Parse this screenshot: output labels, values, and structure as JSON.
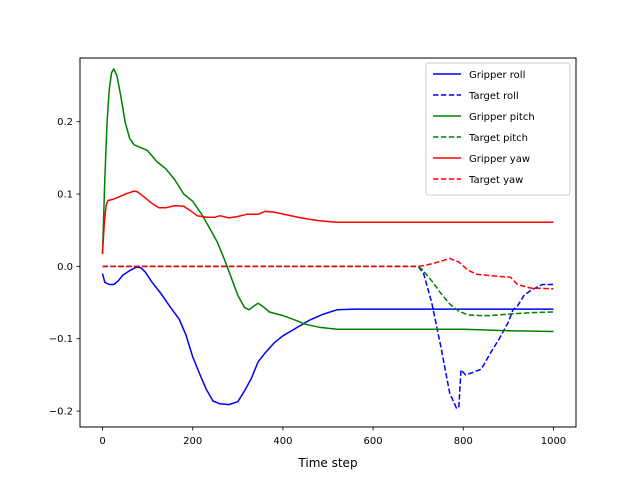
{
  "chart_data": {
    "type": "line",
    "title": "",
    "xlabel": "Time step",
    "ylabel": "",
    "xlim": [
      -50,
      1050
    ],
    "ylim": [
      -0.222,
      0.288
    ],
    "xticks": [
      0,
      200,
      400,
      600,
      800,
      1000
    ],
    "xtick_labels": [
      "0",
      "200",
      "400",
      "600",
      "800",
      "1000"
    ],
    "yticks": [
      -0.2,
      -0.1,
      0.0,
      0.1,
      0.2
    ],
    "ytick_labels": [
      "−0.2",
      "−0.1",
      "0.0",
      "0.1",
      "0.2"
    ],
    "grid": false,
    "legend_position": "top-right",
    "series": [
      {
        "name": "Gripper roll",
        "color": "#0000ff",
        "dash": "solid",
        "points": [
          [
            0,
            -0.01
          ],
          [
            5,
            -0.022
          ],
          [
            15,
            -0.025
          ],
          [
            25,
            -0.025
          ],
          [
            35,
            -0.02
          ],
          [
            45,
            -0.012
          ],
          [
            60,
            -0.006
          ],
          [
            75,
            -0.001
          ],
          [
            85,
            -0.002
          ],
          [
            95,
            -0.008
          ],
          [
            110,
            -0.022
          ],
          [
            130,
            -0.038
          ],
          [
            150,
            -0.056
          ],
          [
            170,
            -0.073
          ],
          [
            185,
            -0.095
          ],
          [
            200,
            -0.125
          ],
          [
            215,
            -0.148
          ],
          [
            230,
            -0.17
          ],
          [
            245,
            -0.186
          ],
          [
            260,
            -0.19
          ],
          [
            280,
            -0.191
          ],
          [
            300,
            -0.187
          ],
          [
            315,
            -0.172
          ],
          [
            330,
            -0.155
          ],
          [
            345,
            -0.132
          ],
          [
            360,
            -0.12
          ],
          [
            380,
            -0.106
          ],
          [
            400,
            -0.096
          ],
          [
            430,
            -0.085
          ],
          [
            460,
            -0.074
          ],
          [
            490,
            -0.066
          ],
          [
            520,
            -0.06
          ],
          [
            560,
            -0.059
          ],
          [
            700,
            -0.059
          ],
          [
            850,
            -0.059
          ],
          [
            1000,
            -0.059
          ]
        ]
      },
      {
        "name": "Target roll",
        "color": "#0000ff",
        "dash": "dashed",
        "points": [
          [
            0,
            0.0
          ],
          [
            700,
            0.0
          ],
          [
            712,
            -0.01
          ],
          [
            730,
            -0.05
          ],
          [
            750,
            -0.11
          ],
          [
            770,
            -0.175
          ],
          [
            785,
            -0.196
          ],
          [
            790,
            -0.195
          ],
          [
            795,
            -0.143
          ],
          [
            805,
            -0.15
          ],
          [
            820,
            -0.147
          ],
          [
            840,
            -0.142
          ],
          [
            860,
            -0.12
          ],
          [
            880,
            -0.1
          ],
          [
            900,
            -0.077
          ],
          [
            910,
            -0.06
          ],
          [
            920,
            -0.055
          ],
          [
            935,
            -0.04
          ],
          [
            950,
            -0.033
          ],
          [
            975,
            -0.025
          ],
          [
            1000,
            -0.025
          ]
        ]
      },
      {
        "name": "Gripper pitch",
        "color": "#008000",
        "dash": "solid",
        "points": [
          [
            0,
            0.017
          ],
          [
            5,
            0.12
          ],
          [
            10,
            0.2
          ],
          [
            15,
            0.245
          ],
          [
            20,
            0.268
          ],
          [
            25,
            0.273
          ],
          [
            32,
            0.263
          ],
          [
            40,
            0.237
          ],
          [
            50,
            0.2
          ],
          [
            60,
            0.177
          ],
          [
            70,
            0.168
          ],
          [
            85,
            0.164
          ],
          [
            100,
            0.16
          ],
          [
            120,
            0.145
          ],
          [
            140,
            0.135
          ],
          [
            160,
            0.12
          ],
          [
            180,
            0.1
          ],
          [
            200,
            0.09
          ],
          [
            220,
            0.072
          ],
          [
            240,
            0.05
          ],
          [
            255,
            0.033
          ],
          [
            270,
            0.01
          ],
          [
            285,
            -0.015
          ],
          [
            300,
            -0.04
          ],
          [
            315,
            -0.057
          ],
          [
            325,
            -0.06
          ],
          [
            335,
            -0.055
          ],
          [
            345,
            -0.051
          ],
          [
            355,
            -0.055
          ],
          [
            370,
            -0.063
          ],
          [
            400,
            -0.068
          ],
          [
            430,
            -0.075
          ],
          [
            450,
            -0.08
          ],
          [
            480,
            -0.084
          ],
          [
            520,
            -0.087
          ],
          [
            600,
            -0.087
          ],
          [
            700,
            -0.087
          ],
          [
            800,
            -0.087
          ],
          [
            900,
            -0.089
          ],
          [
            1000,
            -0.09
          ]
        ]
      },
      {
        "name": "Target pitch",
        "color": "#008000",
        "dash": "dashed",
        "points": [
          [
            0,
            0.0
          ],
          [
            700,
            0.0
          ],
          [
            710,
            -0.005
          ],
          [
            730,
            -0.02
          ],
          [
            750,
            -0.037
          ],
          [
            770,
            -0.052
          ],
          [
            790,
            -0.062
          ],
          [
            810,
            -0.067
          ],
          [
            840,
            -0.068
          ],
          [
            860,
            -0.068
          ],
          [
            900,
            -0.066
          ],
          [
            950,
            -0.064
          ],
          [
            1000,
            -0.063
          ]
        ]
      },
      {
        "name": "Gripper yaw",
        "color": "#ff0000",
        "dash": "solid",
        "points": [
          [
            0,
            0.018
          ],
          [
            4,
            0.06
          ],
          [
            8,
            0.085
          ],
          [
            12,
            0.091
          ],
          [
            25,
            0.093
          ],
          [
            40,
            0.097
          ],
          [
            55,
            0.101
          ],
          [
            70,
            0.104
          ],
          [
            78,
            0.103
          ],
          [
            90,
            0.097
          ],
          [
            110,
            0.087
          ],
          [
            125,
            0.081
          ],
          [
            140,
            0.081
          ],
          [
            160,
            0.084
          ],
          [
            180,
            0.083
          ],
          [
            195,
            0.077
          ],
          [
            210,
            0.07
          ],
          [
            230,
            0.068
          ],
          [
            250,
            0.068
          ],
          [
            260,
            0.07
          ],
          [
            280,
            0.067
          ],
          [
            300,
            0.069
          ],
          [
            320,
            0.072
          ],
          [
            345,
            0.072
          ],
          [
            360,
            0.076
          ],
          [
            380,
            0.075
          ],
          [
            410,
            0.071
          ],
          [
            440,
            0.067
          ],
          [
            480,
            0.063
          ],
          [
            520,
            0.061
          ],
          [
            600,
            0.061
          ],
          [
            700,
            0.061
          ],
          [
            800,
            0.061
          ],
          [
            900,
            0.061
          ],
          [
            1000,
            0.061
          ]
        ]
      },
      {
        "name": "Target yaw",
        "color": "#ff0000",
        "dash": "dashed",
        "points": [
          [
            0,
            0.0
          ],
          [
            700,
            0.0
          ],
          [
            720,
            0.002
          ],
          [
            745,
            0.006
          ],
          [
            770,
            0.011
          ],
          [
            790,
            0.006
          ],
          [
            810,
            -0.005
          ],
          [
            830,
            -0.011
          ],
          [
            850,
            -0.012
          ],
          [
            880,
            -0.014
          ],
          [
            905,
            -0.015
          ],
          [
            920,
            -0.025
          ],
          [
            950,
            -0.03
          ],
          [
            1000,
            -0.031
          ]
        ]
      }
    ]
  }
}
